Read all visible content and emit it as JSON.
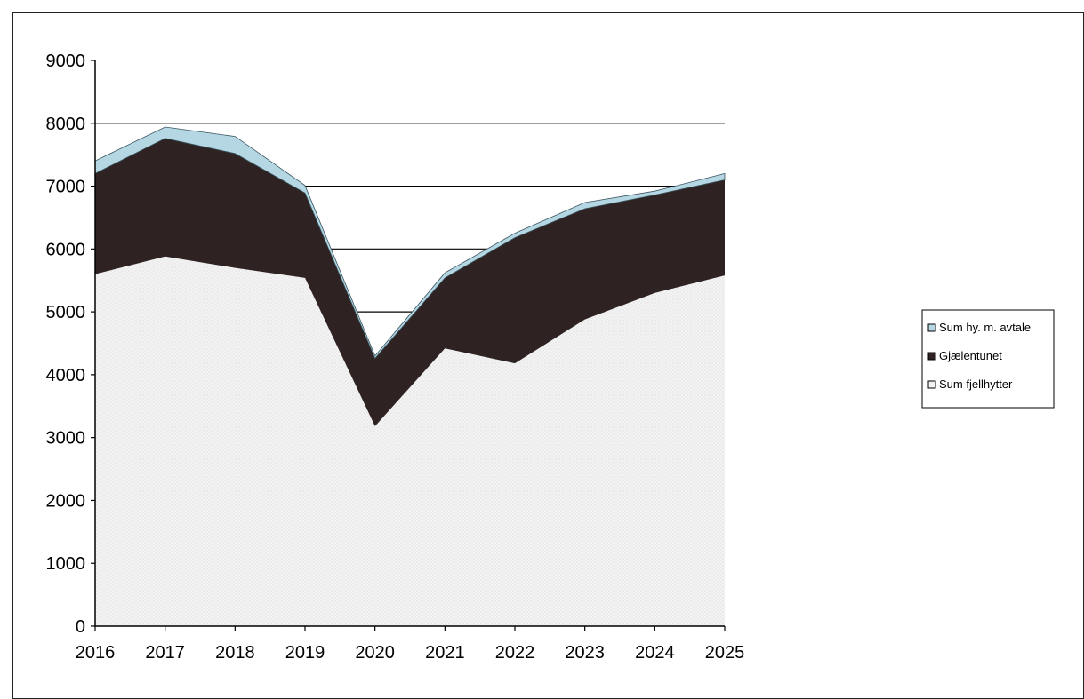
{
  "chart_data": {
    "type": "area",
    "stacked": true,
    "x": [
      "2016",
      "2017",
      "2018",
      "2019",
      "2020",
      "2021",
      "2022",
      "2023",
      "2024",
      "2025"
    ],
    "series": [
      {
        "name": "Sum fjellhytter",
        "values": [
          5600,
          5880,
          5700,
          5540,
          3180,
          4420,
          4180,
          4880,
          5300,
          5580
        ],
        "color": "#f1f1f1"
      },
      {
        "name": "Gjælentunet",
        "values": [
          1600,
          1880,
          1820,
          1350,
          1080,
          1120,
          2000,
          1760,
          1560,
          1520
        ],
        "color": "#2f2222"
      },
      {
        "name": "Sum hy. m. avtale",
        "values": [
          200,
          180,
          270,
          120,
          40,
          80,
          70,
          100,
          60,
          100
        ],
        "color": "#b4d7e3"
      }
    ],
    "yticks": [
      0,
      1000,
      2000,
      3000,
      4000,
      5000,
      6000,
      7000,
      8000,
      9000
    ],
    "ylim": [
      0,
      9000
    ],
    "legend_order": [
      "Sum hy. m. avtale",
      "Gjælentunet",
      "Sum fjellhytter"
    ],
    "legend_placement": "right",
    "gridlines": [
      5000,
      6000,
      7000,
      8000
    ],
    "colors": {
      "tick_label": "#000000",
      "gridline": "#000000",
      "axis": "#000000"
    }
  }
}
